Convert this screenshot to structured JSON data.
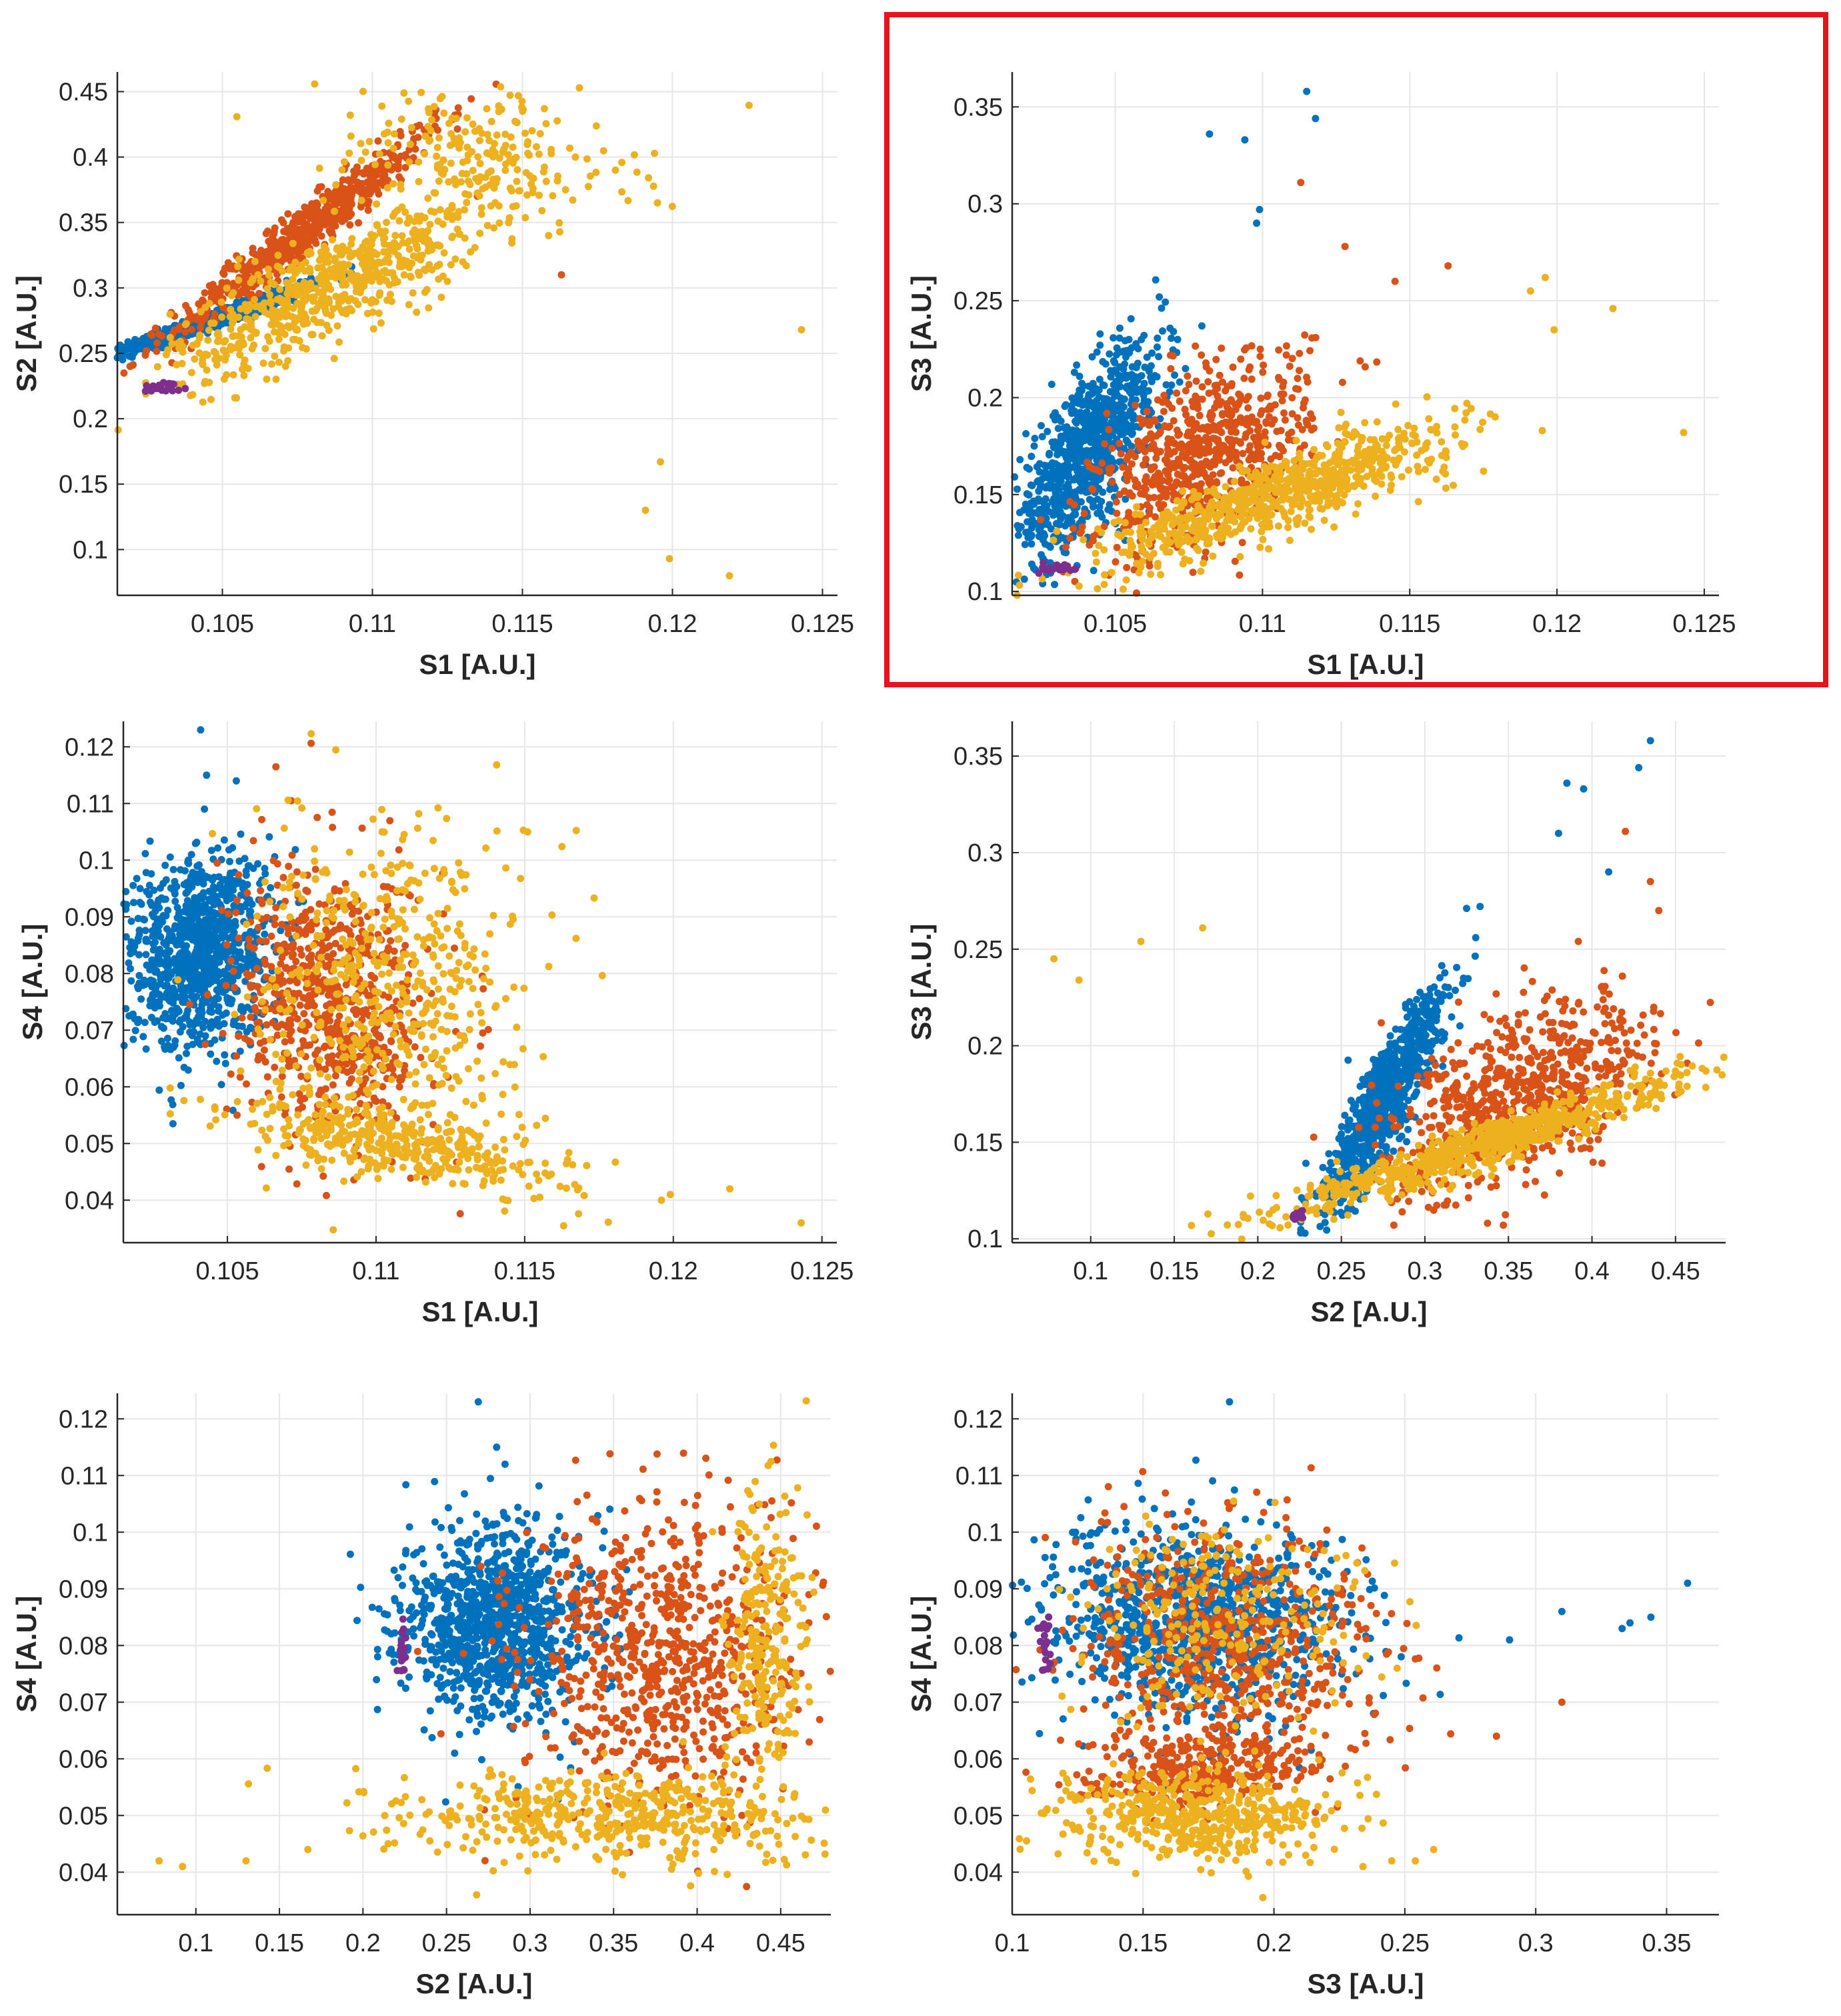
{
  "figure": {
    "highlight_color": "#e8141b",
    "cluster_colors": [
      "#0072bd",
      "#d95319",
      "#edb120",
      "#7e2f8e"
    ]
  },
  "chart_data": [
    {
      "type": "scatter",
      "xlabel": "S1 [A.U.]",
      "ylabel": "S2 [A.U.]",
      "xlim": [
        0.1015,
        0.1255
      ],
      "ylim": [
        0.065,
        0.465
      ],
      "xticks": [
        0.105,
        0.11,
        0.115,
        0.12,
        0.125
      ],
      "yticks": [
        0.1,
        0.15,
        0.2,
        0.25,
        0.3,
        0.35,
        0.4,
        0.45
      ],
      "grid": true,
      "highlighted": false,
      "series": [
        {
          "color": "#0072bd",
          "clouds": [
            {
              "cx": 0.1045,
              "cy": 0.274,
              "sx": 0.0016,
              "sy": 0.013,
              "rho": 0.97,
              "n": 900
            }
          ],
          "points": []
        },
        {
          "color": "#d95319",
          "clouds": [
            {
              "cx": 0.1078,
              "cy": 0.345,
              "sx": 0.0022,
              "sy": 0.04,
              "rho": 0.97,
              "n": 650
            }
          ],
          "points": [
            [
              0.1113,
              0.41
            ],
            [
              0.1163,
              0.31
            ],
            [
              0.1135,
              0.37
            ]
          ]
        },
        {
          "color": "#edb120",
          "clouds": [
            {
              "cx": 0.1085,
              "cy": 0.3,
              "sx": 0.0026,
              "sy": 0.034,
              "rho": 0.82,
              "n": 650
            },
            {
              "cx": 0.1135,
              "cy": 0.4,
              "sx": 0.0025,
              "sy": 0.028,
              "rho": -0.2,
              "n": 220
            }
          ],
          "points": [
            [
              0.1191,
              0.13
            ],
            [
              0.1196,
              0.167
            ],
            [
              0.1199,
              0.093
            ],
            [
              0.1219,
              0.08
            ],
            [
              0.1243,
              0.268
            ],
            [
              0.1195,
              0.365
            ],
            [
              0.1181,
              0.39
            ]
          ]
        },
        {
          "color": "#7e2f8e",
          "clouds": [
            {
              "cx": 0.103,
              "cy": 0.224,
              "sx": 0.0003,
              "sy": 0.002,
              "rho": 0.3,
              "n": 25
            }
          ],
          "points": []
        }
      ]
    },
    {
      "type": "scatter",
      "xlabel": "S1 [A.U.]",
      "ylabel": "S3 [A.U.]",
      "xlim": [
        0.1015,
        0.1255
      ],
      "ylim": [
        0.098,
        0.368
      ],
      "xticks": [
        0.105,
        0.11,
        0.115,
        0.12,
        0.125
      ],
      "yticks": [
        0.1,
        0.15,
        0.2,
        0.25,
        0.3,
        0.35
      ],
      "grid": true,
      "highlighted": true,
      "series": [
        {
          "color": "#0072bd",
          "clouds": [
            {
              "cx": 0.104,
              "cy": 0.17,
              "sx": 0.0013,
              "sy": 0.028,
              "rho": 0.75,
              "n": 900
            }
          ],
          "points": [
            [
              0.1115,
              0.358
            ],
            [
              0.1118,
              0.344
            ],
            [
              0.1082,
              0.336
            ],
            [
              0.1094,
              0.333
            ],
            [
              0.1098,
              0.29
            ],
            [
              0.1099,
              0.297
            ]
          ]
        },
        {
          "color": "#d95319",
          "clouds": [
            {
              "cx": 0.108,
              "cy": 0.17,
              "sx": 0.0018,
              "sy": 0.025,
              "rho": 0.5,
              "n": 700
            }
          ],
          "points": [
            [
              0.1113,
              0.311
            ],
            [
              0.1163,
              0.268
            ],
            [
              0.1145,
              0.26
            ],
            [
              0.1128,
              0.278
            ]
          ]
        },
        {
          "color": "#edb120",
          "clouds": [
            {
              "cx": 0.1105,
              "cy": 0.15,
              "sx": 0.003,
              "sy": 0.018,
              "rho": 0.85,
              "n": 750
            }
          ],
          "points": [
            [
              0.1243,
              0.182
            ],
            [
              0.1219,
              0.246
            ],
            [
              0.1199,
              0.235
            ],
            [
              0.1196,
              0.262
            ],
            [
              0.1191,
              0.255
            ],
            [
              0.1195,
              0.183
            ]
          ]
        },
        {
          "color": "#7e2f8e",
          "clouds": [
            {
              "cx": 0.1031,
              "cy": 0.112,
              "sx": 0.0003,
              "sy": 0.0015,
              "rho": 0.2,
              "n": 25
            }
          ],
          "points": []
        }
      ]
    },
    {
      "type": "scatter",
      "xlabel": "S1 [A.U.]",
      "ylabel": "S4 [A.U.]",
      "xlim": [
        0.1015,
        0.1255
      ],
      "ylim": [
        0.0325,
        0.1245
      ],
      "xticks": [
        0.105,
        0.11,
        0.115,
        0.12,
        0.125
      ],
      "yticks": [
        0.04,
        0.05,
        0.06,
        0.07,
        0.08,
        0.09,
        0.1,
        0.11,
        0.12
      ],
      "grid": true,
      "highlighted": false,
      "series": [
        {
          "color": "#0072bd",
          "clouds": [
            {
              "cx": 0.104,
              "cy": 0.084,
              "sx": 0.0012,
              "sy": 0.0085,
              "rho": 0.1,
              "n": 1000
            }
          ],
          "points": [
            [
              0.1041,
              0.123
            ],
            [
              0.1043,
              0.115
            ],
            [
              0.1053,
              0.114
            ]
          ]
        },
        {
          "color": "#d95319",
          "clouds": [
            {
              "cx": 0.1085,
              "cy": 0.075,
              "sx": 0.0016,
              "sy": 0.012,
              "rho": -0.1,
              "n": 700
            }
          ],
          "points": []
        },
        {
          "color": "#edb120",
          "clouds": [
            {
              "cx": 0.1105,
              "cy": 0.078,
              "sx": 0.0022,
              "sy": 0.014,
              "rho": 0.0,
              "n": 500
            },
            {
              "cx": 0.111,
              "cy": 0.05,
              "sx": 0.0028,
              "sy": 0.004,
              "rho": -0.6,
              "n": 400
            }
          ],
          "points": [
            [
              0.1243,
              0.036
            ],
            [
              0.1219,
              0.042
            ],
            [
              0.1199,
              0.041
            ],
            [
              0.1196,
              0.04
            ],
            [
              0.1151,
              0.105
            ]
          ]
        },
        {
          "color": "#7e2f8e",
          "clouds": [],
          "points": []
        }
      ]
    },
    {
      "type": "scatter",
      "xlabel": "S2 [A.U.]",
      "ylabel": "S3 [A.U.]",
      "xlim": [
        0.053,
        0.48
      ],
      "ylim": [
        0.098,
        0.368
      ],
      "xticks": [
        0.1,
        0.15,
        0.2,
        0.25,
        0.3,
        0.35,
        0.4,
        0.45
      ],
      "yticks": [
        0.1,
        0.15,
        0.2,
        0.25,
        0.3,
        0.35
      ],
      "grid": true,
      "highlighted": false,
      "series": [
        {
          "color": "#0072bd",
          "clouds": [
            {
              "cx": 0.275,
              "cy": 0.17,
              "sx": 0.018,
              "sy": 0.028,
              "rho": 0.88,
              "n": 900
            }
          ],
          "points": [
            [
              0.435,
              0.358
            ],
            [
              0.428,
              0.344
            ],
            [
              0.385,
              0.336
            ],
            [
              0.395,
              0.333
            ],
            [
              0.38,
              0.31
            ],
            [
              0.41,
              0.29
            ]
          ]
        },
        {
          "color": "#d95319",
          "clouds": [
            {
              "cx": 0.36,
              "cy": 0.175,
              "sx": 0.04,
              "sy": 0.025,
              "rho": 0.55,
              "n": 700
            }
          ],
          "points": [
            [
              0.42,
              0.311
            ],
            [
              0.435,
              0.285
            ],
            [
              0.44,
              0.27
            ]
          ]
        },
        {
          "color": "#edb120",
          "clouds": [
            {
              "cx": 0.34,
              "cy": 0.15,
              "sx": 0.06,
              "sy": 0.018,
              "rho": 0.95,
              "n": 750
            }
          ],
          "points": [
            [
              0.078,
              0.245
            ],
            [
              0.093,
              0.234
            ],
            [
              0.13,
              0.254
            ],
            [
              0.167,
              0.261
            ]
          ]
        },
        {
          "color": "#7e2f8e",
          "clouds": [
            {
              "cx": 0.223,
              "cy": 0.112,
              "sx": 0.002,
              "sy": 0.0015,
              "rho": 0.5,
              "n": 20
            }
          ],
          "points": []
        }
      ]
    },
    {
      "type": "scatter",
      "xlabel": "S2 [A.U.]",
      "ylabel": "S4 [A.U.]",
      "xlim": [
        0.053,
        0.48
      ],
      "ylim": [
        0.0325,
        0.1245
      ],
      "xticks": [
        0.1,
        0.15,
        0.2,
        0.25,
        0.3,
        0.35,
        0.4,
        0.45
      ],
      "yticks": [
        0.04,
        0.05,
        0.06,
        0.07,
        0.08,
        0.09,
        0.1,
        0.11,
        0.12
      ],
      "grid": true,
      "highlighted": false,
      "series": [
        {
          "color": "#0072bd",
          "clouds": [
            {
              "cx": 0.28,
              "cy": 0.084,
              "sx": 0.028,
              "sy": 0.0085,
              "rho": 0.0,
              "n": 1000
            }
          ],
          "points": [
            [
              0.269,
              0.123
            ],
            [
              0.28,
              0.115
            ],
            [
              0.285,
              0.112
            ]
          ]
        },
        {
          "color": "#d95319",
          "clouds": [
            {
              "cx": 0.38,
              "cy": 0.078,
              "sx": 0.042,
              "sy": 0.013,
              "rho": 0.0,
              "n": 750
            }
          ],
          "points": []
        },
        {
          "color": "#edb120",
          "clouds": [
            {
              "cx": 0.35,
              "cy": 0.05,
              "sx": 0.06,
              "sy": 0.004,
              "rho": 0.0,
              "n": 500
            },
            {
              "cx": 0.44,
              "cy": 0.08,
              "sx": 0.012,
              "sy": 0.014,
              "rho": 0.0,
              "n": 250
            }
          ],
          "points": [
            [
              0.078,
              0.042
            ],
            [
              0.092,
              0.041
            ],
            [
              0.13,
              0.042
            ],
            [
              0.167,
              0.044
            ],
            [
              0.268,
              0.036
            ]
          ]
        },
        {
          "color": "#7e2f8e",
          "clouds": [
            {
              "cx": 0.223,
              "cy": 0.08,
              "sx": 0.0015,
              "sy": 0.003,
              "rho": 0.0,
              "n": 20
            }
          ],
          "points": []
        }
      ]
    },
    {
      "type": "scatter",
      "xlabel": "S3 [A.U.]",
      "ylabel": "S4 [A.U.]",
      "xlim": [
        0.1,
        0.37
      ],
      "ylim": [
        0.0325,
        0.1245
      ],
      "xticks": [
        0.1,
        0.15,
        0.2,
        0.25,
        0.3,
        0.35
      ],
      "yticks": [
        0.04,
        0.05,
        0.06,
        0.07,
        0.08,
        0.09,
        0.1,
        0.11,
        0.12
      ],
      "grid": true,
      "highlighted": false,
      "series": [
        {
          "color": "#0072bd",
          "clouds": [
            {
              "cx": 0.17,
              "cy": 0.084,
              "sx": 0.03,
              "sy": 0.0085,
              "rho": 0.0,
              "n": 1000
            }
          ],
          "points": [
            [
              0.358,
              0.091
            ],
            [
              0.344,
              0.085
            ],
            [
              0.336,
              0.084
            ],
            [
              0.333,
              0.083
            ],
            [
              0.31,
              0.086
            ],
            [
              0.29,
              0.081
            ],
            [
              0.183,
              0.123
            ]
          ]
        },
        {
          "color": "#d95319",
          "clouds": [
            {
              "cx": 0.185,
              "cy": 0.08,
              "sx": 0.03,
              "sy": 0.011,
              "rho": 0.0,
              "n": 600
            },
            {
              "cx": 0.17,
              "cy": 0.058,
              "sx": 0.022,
              "sy": 0.003,
              "rho": 0.2,
              "n": 300
            }
          ],
          "points": [
            [
              0.31,
              0.07
            ],
            [
              0.285,
              0.064
            ]
          ]
        },
        {
          "color": "#edb120",
          "clouds": [
            {
              "cx": 0.17,
              "cy": 0.05,
              "sx": 0.025,
              "sy": 0.004,
              "rho": 0.0,
              "n": 500
            },
            {
              "cx": 0.18,
              "cy": 0.085,
              "sx": 0.028,
              "sy": 0.009,
              "rho": 0.0,
              "n": 250
            }
          ],
          "points": [
            [
              0.245,
              0.042
            ],
            [
              0.234,
              0.041
            ],
            [
              0.254,
              0.042
            ],
            [
              0.261,
              0.044
            ]
          ]
        },
        {
          "color": "#7e2f8e",
          "clouds": [
            {
              "cx": 0.112,
              "cy": 0.08,
              "sx": 0.0012,
              "sy": 0.003,
              "rho": 0.0,
              "n": 20
            }
          ],
          "points": []
        }
      ]
    }
  ]
}
